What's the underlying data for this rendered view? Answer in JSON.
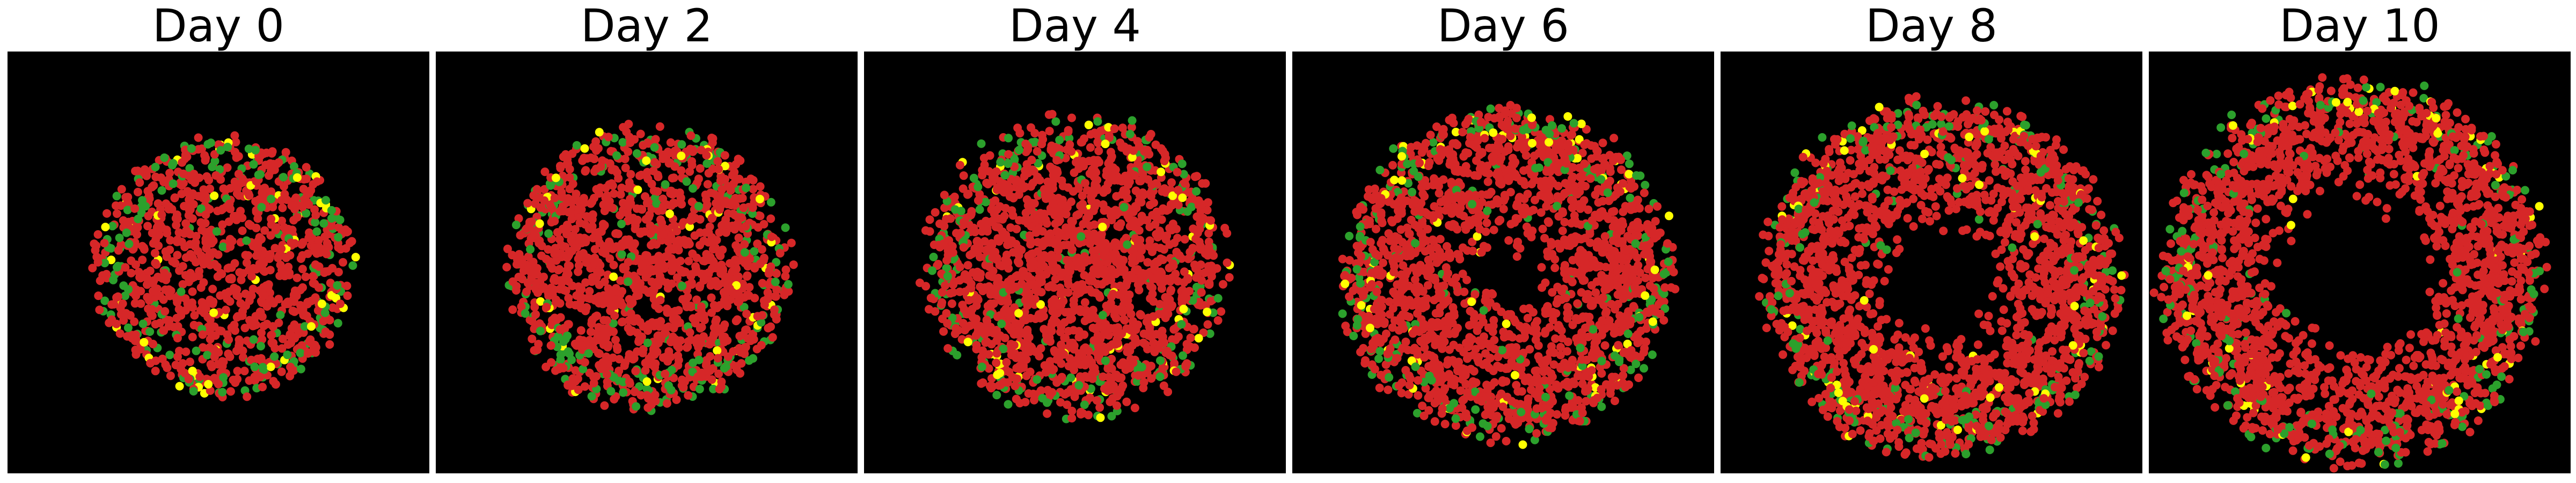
{
  "figure": {
    "background": "#ffffff",
    "panel_background": "#000000"
  },
  "legend_colors": {
    "red_cells": "#d62728",
    "green_cells": "#2ca02c",
    "yellow_cells": "#ffff00"
  },
  "panels": [
    {
      "title": "Day 0",
      "shape": "filled-disk",
      "composition": {
        "red": 0.86,
        "green": 0.11,
        "yellow": 0.03
      }
    },
    {
      "title": "Day 2",
      "shape": "filled-disk",
      "composition": {
        "red": 0.87,
        "green": 0.1,
        "yellow": 0.03
      }
    },
    {
      "title": "Day 4",
      "shape": "filled-disk",
      "composition": {
        "red": 0.88,
        "green": 0.09,
        "yellow": 0.03
      }
    },
    {
      "title": "Day 6",
      "shape": "ring-small-hole",
      "composition": {
        "red": 0.89,
        "green": 0.08,
        "yellow": 0.03
      }
    },
    {
      "title": "Day 8",
      "shape": "ring",
      "composition": {
        "red": 0.9,
        "green": 0.07,
        "yellow": 0.03
      }
    },
    {
      "title": "Day 10",
      "shape": "ring-large-hole",
      "composition": {
        "red": 0.9,
        "green": 0.07,
        "yellow": 0.03
      }
    }
  ]
}
